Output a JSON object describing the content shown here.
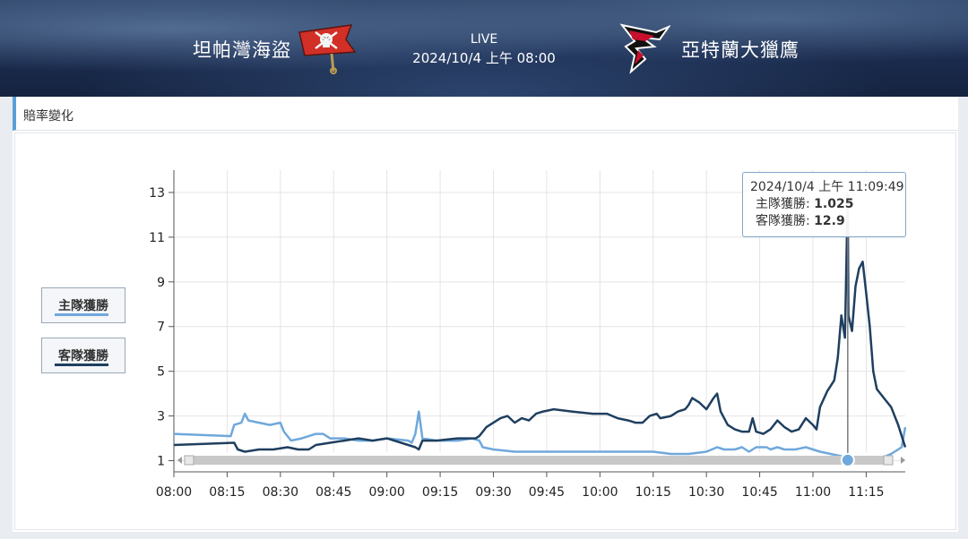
{
  "header": {
    "home_team": "坦帕灣海盜",
    "away_team": "亞特蘭大獵鷹",
    "status": "LIVE",
    "match_time": "2024/10/4 上午 08:00"
  },
  "panel": {
    "title": "賠率變化"
  },
  "legend": {
    "home": {
      "label": "主隊獲勝",
      "color": "#6fa8dc"
    },
    "away": {
      "label": "客隊獲勝",
      "color": "#1f3f60"
    }
  },
  "tooltip": {
    "time": "2024/10/4 上午 11:09:49",
    "home_label": "主隊獲勝: ",
    "home_value": "1.025",
    "away_label": "客隊獲勝: ",
    "away_value": "12.9"
  },
  "chart_data": {
    "type": "line",
    "title": "",
    "xlabel": "",
    "ylabel": "",
    "x_unit": "minutes since 08:00",
    "xlim": [
      0,
      206
    ],
    "ylim": [
      0.5,
      14
    ],
    "y_ticks": [
      1,
      3,
      5,
      7,
      9,
      11,
      13
    ],
    "x_ticks": [
      "08:00",
      "08:15",
      "08:30",
      "08:45",
      "09:00",
      "09:15",
      "09:30",
      "09:45",
      "10:00",
      "10:15",
      "10:30",
      "10:45",
      "11:00",
      "11:15"
    ],
    "grid": true,
    "legend_position": "left",
    "crosshair_x": 189.8,
    "series": [
      {
        "name": "主隊獲勝",
        "color": "#6fa8dc",
        "points": [
          [
            0,
            2.2
          ],
          [
            16,
            2.1
          ],
          [
            17,
            2.6
          ],
          [
            19,
            2.7
          ],
          [
            20,
            3.1
          ],
          [
            21,
            2.8
          ],
          [
            24,
            2.7
          ],
          [
            27,
            2.6
          ],
          [
            30,
            2.7
          ],
          [
            31,
            2.3
          ],
          [
            32,
            2.1
          ],
          [
            33,
            1.9
          ],
          [
            36,
            2.0
          ],
          [
            40,
            2.2
          ],
          [
            42,
            2.2
          ],
          [
            44,
            2.0
          ],
          [
            48,
            2.0
          ],
          [
            52,
            1.9
          ],
          [
            56,
            1.9
          ],
          [
            60,
            2.0
          ],
          [
            66,
            1.9
          ],
          [
            67,
            1.8
          ],
          [
            68,
            2.2
          ],
          [
            69,
            3.2
          ],
          [
            70,
            2.0
          ],
          [
            74,
            1.9
          ],
          [
            80,
            1.9
          ],
          [
            84,
            2.0
          ],
          [
            86,
            1.9
          ],
          [
            87,
            1.6
          ],
          [
            90,
            1.5
          ],
          [
            96,
            1.4
          ],
          [
            102,
            1.4
          ],
          [
            110,
            1.4
          ],
          [
            120,
            1.4
          ],
          [
            130,
            1.4
          ],
          [
            135,
            1.4
          ],
          [
            140,
            1.3
          ],
          [
            145,
            1.3
          ],
          [
            150,
            1.4
          ],
          [
            153,
            1.6
          ],
          [
            155,
            1.5
          ],
          [
            158,
            1.5
          ],
          [
            160,
            1.6
          ],
          [
            162,
            1.4
          ],
          [
            164,
            1.6
          ],
          [
            167,
            1.6
          ],
          [
            168,
            1.5
          ],
          [
            170,
            1.6
          ],
          [
            172,
            1.5
          ],
          [
            175,
            1.5
          ],
          [
            178,
            1.6
          ],
          [
            180,
            1.5
          ],
          [
            182,
            1.4
          ],
          [
            185,
            1.3
          ],
          [
            188,
            1.2
          ],
          [
            189.8,
            1.025
          ],
          [
            191,
            1.0
          ],
          [
            194,
            1.0
          ],
          [
            196,
            1.1
          ],
          [
            199,
            1.1
          ],
          [
            202,
            1.3
          ],
          [
            205,
            1.6
          ],
          [
            206,
            2.5
          ]
        ]
      },
      {
        "name": "客隊獲勝",
        "color": "#1f3f60",
        "points": [
          [
            0,
            1.7
          ],
          [
            17,
            1.8
          ],
          [
            18,
            1.5
          ],
          [
            20,
            1.4
          ],
          [
            24,
            1.5
          ],
          [
            28,
            1.5
          ],
          [
            32,
            1.6
          ],
          [
            35,
            1.5
          ],
          [
            38,
            1.5
          ],
          [
            40,
            1.7
          ],
          [
            44,
            1.8
          ],
          [
            48,
            1.9
          ],
          [
            52,
            2.0
          ],
          [
            56,
            1.9
          ],
          [
            60,
            2.0
          ],
          [
            64,
            1.8
          ],
          [
            66,
            1.7
          ],
          [
            68,
            1.6
          ],
          [
            69,
            1.5
          ],
          [
            70,
            1.9
          ],
          [
            74,
            1.9
          ],
          [
            80,
            2.0
          ],
          [
            85,
            2.0
          ],
          [
            86,
            2.1
          ],
          [
            88,
            2.5
          ],
          [
            90,
            2.7
          ],
          [
            92,
            2.9
          ],
          [
            94,
            3.0
          ],
          [
            96,
            2.7
          ],
          [
            98,
            2.9
          ],
          [
            100,
            2.8
          ],
          [
            102,
            3.1
          ],
          [
            104,
            3.2
          ],
          [
            107,
            3.3
          ],
          [
            112,
            3.2
          ],
          [
            118,
            3.1
          ],
          [
            122,
            3.1
          ],
          [
            125,
            2.9
          ],
          [
            128,
            2.8
          ],
          [
            130,
            2.7
          ],
          [
            132,
            2.7
          ],
          [
            134,
            3.0
          ],
          [
            136,
            3.1
          ],
          [
            137,
            2.9
          ],
          [
            140,
            3.0
          ],
          [
            142,
            3.2
          ],
          [
            144,
            3.3
          ],
          [
            145,
            3.5
          ],
          [
            146,
            3.8
          ],
          [
            148,
            3.6
          ],
          [
            150,
            3.3
          ],
          [
            152,
            3.8
          ],
          [
            153,
            4.0
          ],
          [
            154,
            3.2
          ],
          [
            156,
            2.6
          ],
          [
            158,
            2.4
          ],
          [
            160,
            2.3
          ],
          [
            162,
            2.3
          ],
          [
            163,
            2.9
          ],
          [
            164,
            2.3
          ],
          [
            166,
            2.2
          ],
          [
            168,
            2.4
          ],
          [
            170,
            2.8
          ],
          [
            172,
            2.5
          ],
          [
            174,
            2.3
          ],
          [
            176,
            2.4
          ],
          [
            178,
            2.9
          ],
          [
            180,
            2.6
          ],
          [
            181,
            2.4
          ],
          [
            182,
            3.4
          ],
          [
            184,
            4.1
          ],
          [
            186,
            4.6
          ],
          [
            187,
            5.6
          ],
          [
            188,
            7.5
          ],
          [
            189,
            6.5
          ],
          [
            189.8,
            12.9
          ],
          [
            190,
            7.5
          ],
          [
            191,
            6.8
          ],
          [
            192,
            8.8
          ],
          [
            193,
            9.6
          ],
          [
            194,
            9.9
          ],
          [
            195,
            8.5
          ],
          [
            196,
            7.0
          ],
          [
            197,
            5.0
          ],
          [
            198,
            4.2
          ],
          [
            200,
            3.8
          ],
          [
            202,
            3.4
          ],
          [
            204,
            2.6
          ],
          [
            206,
            1.6
          ]
        ]
      }
    ]
  }
}
